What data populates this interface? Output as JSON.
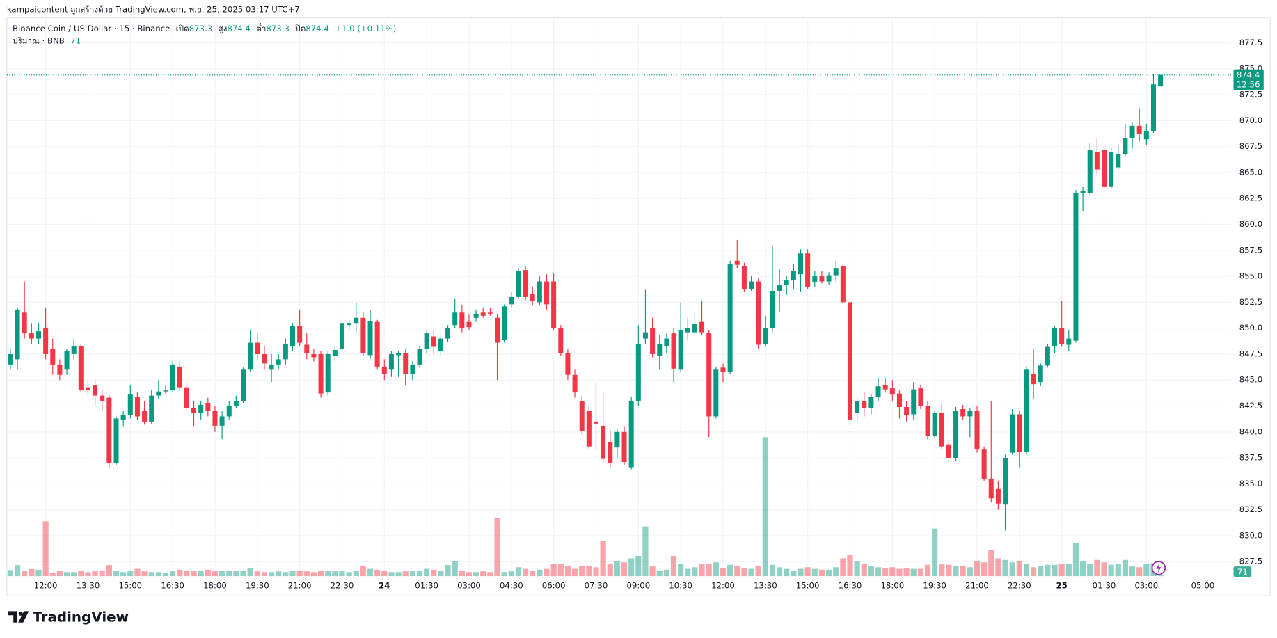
{
  "header": {
    "attribution": "kampaicontent ถูกสร้างด้วย TradingView.com, พ.ย. 25, 2025 03:17 UTC+7"
  },
  "branding": "TradingView",
  "chart_data": {
    "type": "candlestick",
    "title": "Binance Coin / US Dollar · 15 · Binance",
    "legend_labels": {
      "open": "เปิด",
      "high": "สูง",
      "low": "ต่ำ",
      "close": "ปิด"
    },
    "change": "+1.0 (+0.11%)",
    "volume_label": "ปริมาณ · BNB",
    "countdown": "12:56",
    "up_color": "#089981",
    "down_color": "#f23645",
    "grid": true,
    "xlim": [
      -0.5,
      173
    ],
    "ylim": [
      826.1,
      879.9
    ],
    "volume_ylim": [
      0,
      55000
    ],
    "xticks": [
      {
        "value": 5,
        "label": "12:00"
      },
      {
        "value": 11,
        "label": "13:30"
      },
      {
        "value": 17,
        "label": "15:00"
      },
      {
        "value": 23,
        "label": "16:30"
      },
      {
        "value": 29,
        "label": "18:00"
      },
      {
        "value": 35,
        "label": "19:30"
      },
      {
        "value": 41,
        "label": "21:00"
      },
      {
        "value": 47,
        "label": "22:30"
      },
      {
        "value": 53,
        "label": "24"
      },
      {
        "value": 59,
        "label": "01:30"
      },
      {
        "value": 65,
        "label": "03:00"
      },
      {
        "value": 71,
        "label": "04:30"
      },
      {
        "value": 77,
        "label": "06:00"
      },
      {
        "value": 83,
        "label": "07:30"
      },
      {
        "value": 89,
        "label": "09:00"
      },
      {
        "value": 95,
        "label": "10:30"
      },
      {
        "value": 101,
        "label": "12:00"
      },
      {
        "value": 107,
        "label": "13:30"
      },
      {
        "value": 113,
        "label": "15:00"
      },
      {
        "value": 119,
        "label": "16:30"
      },
      {
        "value": 125,
        "label": "18:00"
      },
      {
        "value": 131,
        "label": "19:30"
      },
      {
        "value": 137,
        "label": "21:00"
      },
      {
        "value": 143,
        "label": "22:30"
      },
      {
        "value": 149,
        "label": "25"
      },
      {
        "value": 155,
        "label": "01:30"
      },
      {
        "value": 161,
        "label": "03:00"
      },
      {
        "value": 169,
        "label": "05:00"
      }
    ],
    "yticks": [
      827.5,
      {
        "value": 830,
        "label": "830.0"
      },
      832.5,
      {
        "value": 835,
        "label": "835.0"
      },
      837.5,
      {
        "value": 840,
        "label": "840.0"
      },
      842.5,
      {
        "value": 845,
        "label": "845.0"
      },
      847.5,
      {
        "value": 850,
        "label": "850.0"
      },
      852.5,
      {
        "value": 855,
        "label": "855.0"
      },
      857.5,
      {
        "value": 860,
        "label": "860.0"
      },
      862.5,
      {
        "value": 865,
        "label": "865.0"
      },
      867.5,
      {
        "value": 870,
        "label": "870.0"
      },
      872.5,
      {
        "value": 875,
        "label": "875.0"
      },
      877.5
    ],
    "ohlc": [
      [
        846.5,
        848,
        846,
        847.5
      ],
      [
        847,
        852,
        846,
        851.8
      ],
      [
        851.5,
        854.5,
        849,
        849.5
      ],
      [
        849.5,
        850.5,
        848.5,
        849
      ],
      [
        849,
        850.5,
        848.5,
        849.7
      ],
      [
        850,
        852,
        847,
        847.5
      ],
      [
        848,
        849,
        845.5,
        846.5
      ],
      [
        846.5,
        847,
        845,
        845.5
      ],
      [
        846,
        848,
        845.5,
        847.8
      ],
      [
        847.5,
        849,
        847,
        848.3
      ],
      [
        848.3,
        848.5,
        843.8,
        844
      ],
      [
        844.3,
        845,
        843.5,
        844
      ],
      [
        844.5,
        845,
        842.5,
        843.5
      ],
      [
        843.5,
        844,
        842,
        843
      ],
      [
        843.3,
        843.5,
        836.5,
        837
      ],
      [
        837,
        841.5,
        836.8,
        841.3
      ],
      [
        841.2,
        842,
        840.5,
        841.6
      ],
      [
        841.6,
        844.5,
        841.3,
        843.6
      ],
      [
        843.4,
        843.8,
        841.2,
        841.5
      ],
      [
        842,
        843,
        840.7,
        841
      ],
      [
        841,
        844,
        840.8,
        843.5
      ],
      [
        843.5,
        845,
        843.2,
        843.9
      ],
      [
        843.9,
        844.5,
        843.6,
        844
      ],
      [
        844,
        846.8,
        843.8,
        846.5
      ],
      [
        846.3,
        846.8,
        844,
        844.3
      ],
      [
        844.3,
        844.8,
        842,
        842.3
      ],
      [
        842.3,
        843,
        840.5,
        841.8
      ],
      [
        841.8,
        843,
        841.2,
        842.6
      ],
      [
        842.8,
        843.3,
        841.5,
        842
      ],
      [
        842,
        842.5,
        840,
        840.6
      ],
      [
        840.6,
        842,
        839.3,
        841.5
      ],
      [
        841.5,
        843,
        841.2,
        842.5
      ],
      [
        842.5,
        843.5,
        842.3,
        843
      ],
      [
        843,
        846.2,
        842.8,
        846
      ],
      [
        846,
        849.8,
        845.8,
        848.6
      ],
      [
        848.6,
        849.5,
        847,
        847.5
      ],
      [
        847.5,
        848.3,
        846,
        846.6
      ],
      [
        846,
        847.5,
        844.8,
        846.5
      ],
      [
        846.5,
        847.5,
        846,
        847
      ],
      [
        847,
        849,
        846.5,
        848.5
      ],
      [
        848.3,
        850.5,
        847.8,
        850.2
      ],
      [
        850.2,
        851.8,
        848.3,
        848.6
      ],
      [
        848.4,
        849.5,
        847,
        847.6
      ],
      [
        847.5,
        848,
        846.8,
        847.2
      ],
      [
        847.5,
        847.8,
        843.3,
        843.7
      ],
      [
        843.8,
        847.8,
        843.5,
        847.5
      ],
      [
        847.3,
        848.2,
        846.8,
        847.9
      ],
      [
        848,
        850.8,
        847.8,
        850.5
      ],
      [
        850.3,
        850.8,
        849.8,
        850.5
      ],
      [
        850.5,
        852.5,
        849.5,
        851
      ],
      [
        851,
        851.5,
        847.3,
        847.6
      ],
      [
        847.4,
        851.8,
        847,
        850.7
      ],
      [
        850.6,
        850.8,
        846,
        846.3
      ],
      [
        846.3,
        847,
        845,
        845.6
      ],
      [
        846,
        847.8,
        845.3,
        847.5
      ],
      [
        847.4,
        847.8,
        845.3,
        847.6
      ],
      [
        847.6,
        848,
        844.5,
        845.6
      ],
      [
        845.6,
        846.8,
        845,
        846.5
      ],
      [
        846.5,
        848.3,
        846.2,
        848
      ],
      [
        848,
        849.8,
        847.6,
        849.5
      ],
      [
        849.2,
        849.8,
        847.5,
        848.2
      ],
      [
        847.8,
        849.3,
        847.3,
        849
      ],
      [
        849,
        850.3,
        848.7,
        850
      ],
      [
        850.3,
        852.8,
        850,
        851.5
      ],
      [
        851.5,
        852.2,
        849.6,
        850
      ],
      [
        850.6,
        851.3,
        849.8,
        850.1
      ],
      [
        851,
        851.8,
        850.6,
        851.4
      ],
      [
        851.5,
        852,
        851,
        851.2
      ],
      [
        851.5,
        852,
        851.2,
        851.4
      ],
      [
        851,
        851.4,
        845,
        848.6
      ],
      [
        848.9,
        852.3,
        848.6,
        852.1
      ],
      [
        852.3,
        853.5,
        852,
        853
      ],
      [
        853,
        855.8,
        852.8,
        855.5
      ],
      [
        855.6,
        856,
        852.7,
        853
      ],
      [
        853.3,
        854,
        852.2,
        852.6
      ],
      [
        852.5,
        855,
        852.2,
        854.5
      ],
      [
        854.5,
        855.2,
        851.8,
        852.3
      ],
      [
        854.5,
        855.3,
        849.8,
        850
      ],
      [
        850,
        850.3,
        847.3,
        847.6
      ],
      [
        847.6,
        848,
        845,
        845.5
      ],
      [
        845.5,
        846,
        843.3,
        843.8
      ],
      [
        843,
        843.5,
        839.8,
        840.1
      ],
      [
        842,
        842.5,
        838.3,
        838.6
      ],
      [
        841,
        844.8,
        838.2,
        840.8
      ],
      [
        840.6,
        843.8,
        837,
        837.4
      ],
      [
        839,
        840.2,
        836.5,
        837
      ],
      [
        838.5,
        840.3,
        837.5,
        840
      ],
      [
        840,
        840.5,
        836.8,
        837.1
      ],
      [
        836.6,
        843.4,
        836.4,
        843
      ],
      [
        843,
        850.3,
        842.5,
        848.5
      ],
      [
        849,
        853.7,
        848.5,
        849.6
      ],
      [
        850,
        851,
        847.2,
        847.5
      ],
      [
        847.3,
        849.3,
        846,
        848.5
      ],
      [
        848.3,
        849.5,
        847.6,
        849
      ],
      [
        849.5,
        850,
        844.8,
        846.1
      ],
      [
        846,
        852.5,
        845.8,
        849.8
      ],
      [
        849.6,
        851,
        848.8,
        850
      ],
      [
        849.6,
        851.3,
        849.3,
        850.4
      ],
      [
        850.6,
        852.6,
        849.3,
        849.6
      ],
      [
        849.5,
        849.8,
        839.5,
        841.5
      ],
      [
        841.5,
        846.3,
        841.3,
        846
      ],
      [
        846.2,
        846.6,
        844.8,
        845.8
      ],
      [
        845.8,
        856.5,
        845.6,
        856.2
      ],
      [
        856.5,
        858.5,
        855.8,
        856.1
      ],
      [
        856,
        856.3,
        853.5,
        853.8
      ],
      [
        853.8,
        855,
        853.6,
        854.5
      ],
      [
        854.5,
        854.8,
        848,
        848.4
      ],
      [
        848.5,
        851.2,
        848.2,
        850
      ],
      [
        850,
        858,
        849.6,
        853.6
      ],
      [
        853.6,
        855.7,
        851.6,
        854.2
      ],
      [
        854.2,
        855,
        853.2,
        854.6
      ],
      [
        854.6,
        856.2,
        853.8,
        855.5
      ],
      [
        855.2,
        857.6,
        853.5,
        857.2
      ],
      [
        857.2,
        857.6,
        853.8,
        854
      ],
      [
        854.4,
        855.5,
        854,
        855
      ],
      [
        855,
        855.5,
        854.3,
        854.5
      ],
      [
        854.5,
        855.4,
        854.2,
        855.1
      ],
      [
        855.1,
        856.5,
        854.5,
        855.8
      ],
      [
        856,
        856.2,
        852.3,
        852.5
      ],
      [
        852.5,
        852.8,
        840.6,
        841.2
      ],
      [
        841.8,
        843.4,
        841,
        843
      ],
      [
        843,
        843.8,
        841.5,
        842.3
      ],
      [
        842.3,
        843.6,
        841.7,
        843.4
      ],
      [
        843.4,
        845.2,
        843,
        844.4
      ],
      [
        844.5,
        845.2,
        843.8,
        844.1
      ],
      [
        844.2,
        845,
        843,
        843.6
      ],
      [
        843.7,
        844,
        841.3,
        842.4
      ],
      [
        842.4,
        843,
        841,
        841.6
      ],
      [
        841.7,
        844.8,
        841.2,
        844.1
      ],
      [
        844.2,
        844.5,
        842.2,
        842.5
      ],
      [
        842.5,
        843,
        839.3,
        839.6
      ],
      [
        839.6,
        842,
        839.4,
        841.8
      ],
      [
        841.8,
        842.8,
        838.3,
        838.6
      ],
      [
        838.8,
        839.3,
        837,
        837.5
      ],
      [
        837.5,
        842.4,
        837.2,
        842
      ],
      [
        842.2,
        842.6,
        841.2,
        841.5
      ],
      [
        841.5,
        842.3,
        839.5,
        842
      ],
      [
        842,
        842.5,
        838,
        838.3
      ],
      [
        838.3,
        838.6,
        835.3,
        835.5
      ],
      [
        835.5,
        843,
        833.2,
        833.6
      ],
      [
        834.5,
        835.3,
        832.5,
        833.1
      ],
      [
        833,
        837.8,
        830.5,
        837.5
      ],
      [
        838,
        842.2,
        837.8,
        841.7
      ],
      [
        841.7,
        842,
        836.6,
        838.1
      ],
      [
        838.1,
        846.3,
        837.8,
        846
      ],
      [
        845.6,
        848,
        843.2,
        844.6
      ],
      [
        844.8,
        846.6,
        844.4,
        846.4
      ],
      [
        846.4,
        848.5,
        846.2,
        848.2
      ],
      [
        848.3,
        850.2,
        847.6,
        850
      ],
      [
        850,
        852.6,
        848.2,
        848.5
      ],
      [
        848.4,
        849.8,
        847.8,
        849
      ],
      [
        848.8,
        863.3,
        848.6,
        863
      ],
      [
        863,
        863.6,
        861.3,
        863.2
      ],
      [
        863,
        867.8,
        862.8,
        867.2
      ],
      [
        867,
        868.3,
        864.8,
        865.3
      ],
      [
        867.2,
        867.5,
        863.2,
        863.6
      ],
      [
        863.6,
        867.4,
        863.4,
        867
      ],
      [
        865.5,
        867.6,
        865.3,
        866.8
      ],
      [
        866.8,
        869.7,
        866.6,
        868.3
      ],
      [
        868.3,
        869.8,
        867.3,
        869.5
      ],
      [
        869.5,
        871.2,
        868,
        868.7
      ],
      [
        868.2,
        869.7,
        867.6,
        869
      ],
      [
        869,
        874.5,
        868.8,
        873.5
      ],
      [
        873.3,
        874.4,
        873.3,
        874.4
      ]
    ],
    "volume": [
      600,
      1100,
      560,
      700,
      640,
      5400,
      320,
      480,
      400,
      400,
      520,
      400,
      560,
      560,
      1100,
      480,
      400,
      480,
      720,
      480,
      400,
      400,
      320,
      480,
      640,
      560,
      480,
      560,
      640,
      480,
      560,
      560,
      480,
      560,
      800,
      480,
      400,
      400,
      480,
      400,
      480,
      560,
      480,
      400,
      560,
      480,
      480,
      480,
      400,
      560,
      1000,
      720,
      640,
      560,
      400,
      400,
      480,
      480,
      560,
      720,
      640,
      560,
      1100,
      1520,
      560,
      400,
      400,
      480,
      400,
      5700,
      400,
      480,
      880,
      720,
      560,
      640,
      720,
      1200,
      1200,
      1040,
      720,
      1040,
      1040,
      880,
      3500,
      1200,
      1520,
      1360,
      1760,
      2000,
      4900,
      960,
      560,
      640,
      2000,
      1200,
      720,
      880,
      1200,
      1200,
      1360,
      800,
      1120,
      1040,
      800,
      720,
      1040,
      13700,
      1120,
      880,
      720,
      560,
      720,
      880,
      720,
      640,
      640,
      880,
      1760,
      2080,
      1440,
      1200,
      960,
      880,
      800,
      880,
      720,
      800,
      720,
      720,
      1120,
      4700,
      1200,
      1120,
      1040,
      1040,
      880,
      1520,
      1360,
      2600,
      1760,
      1600,
      1360,
      1520,
      1200,
      880,
      1040,
      1120,
      1120,
      1200,
      1200,
      3300,
      1440,
      1200,
      1600,
      1360,
      1120,
      1200,
      1600,
      960,
      880,
      1200,
      1280,
      71
    ]
  }
}
